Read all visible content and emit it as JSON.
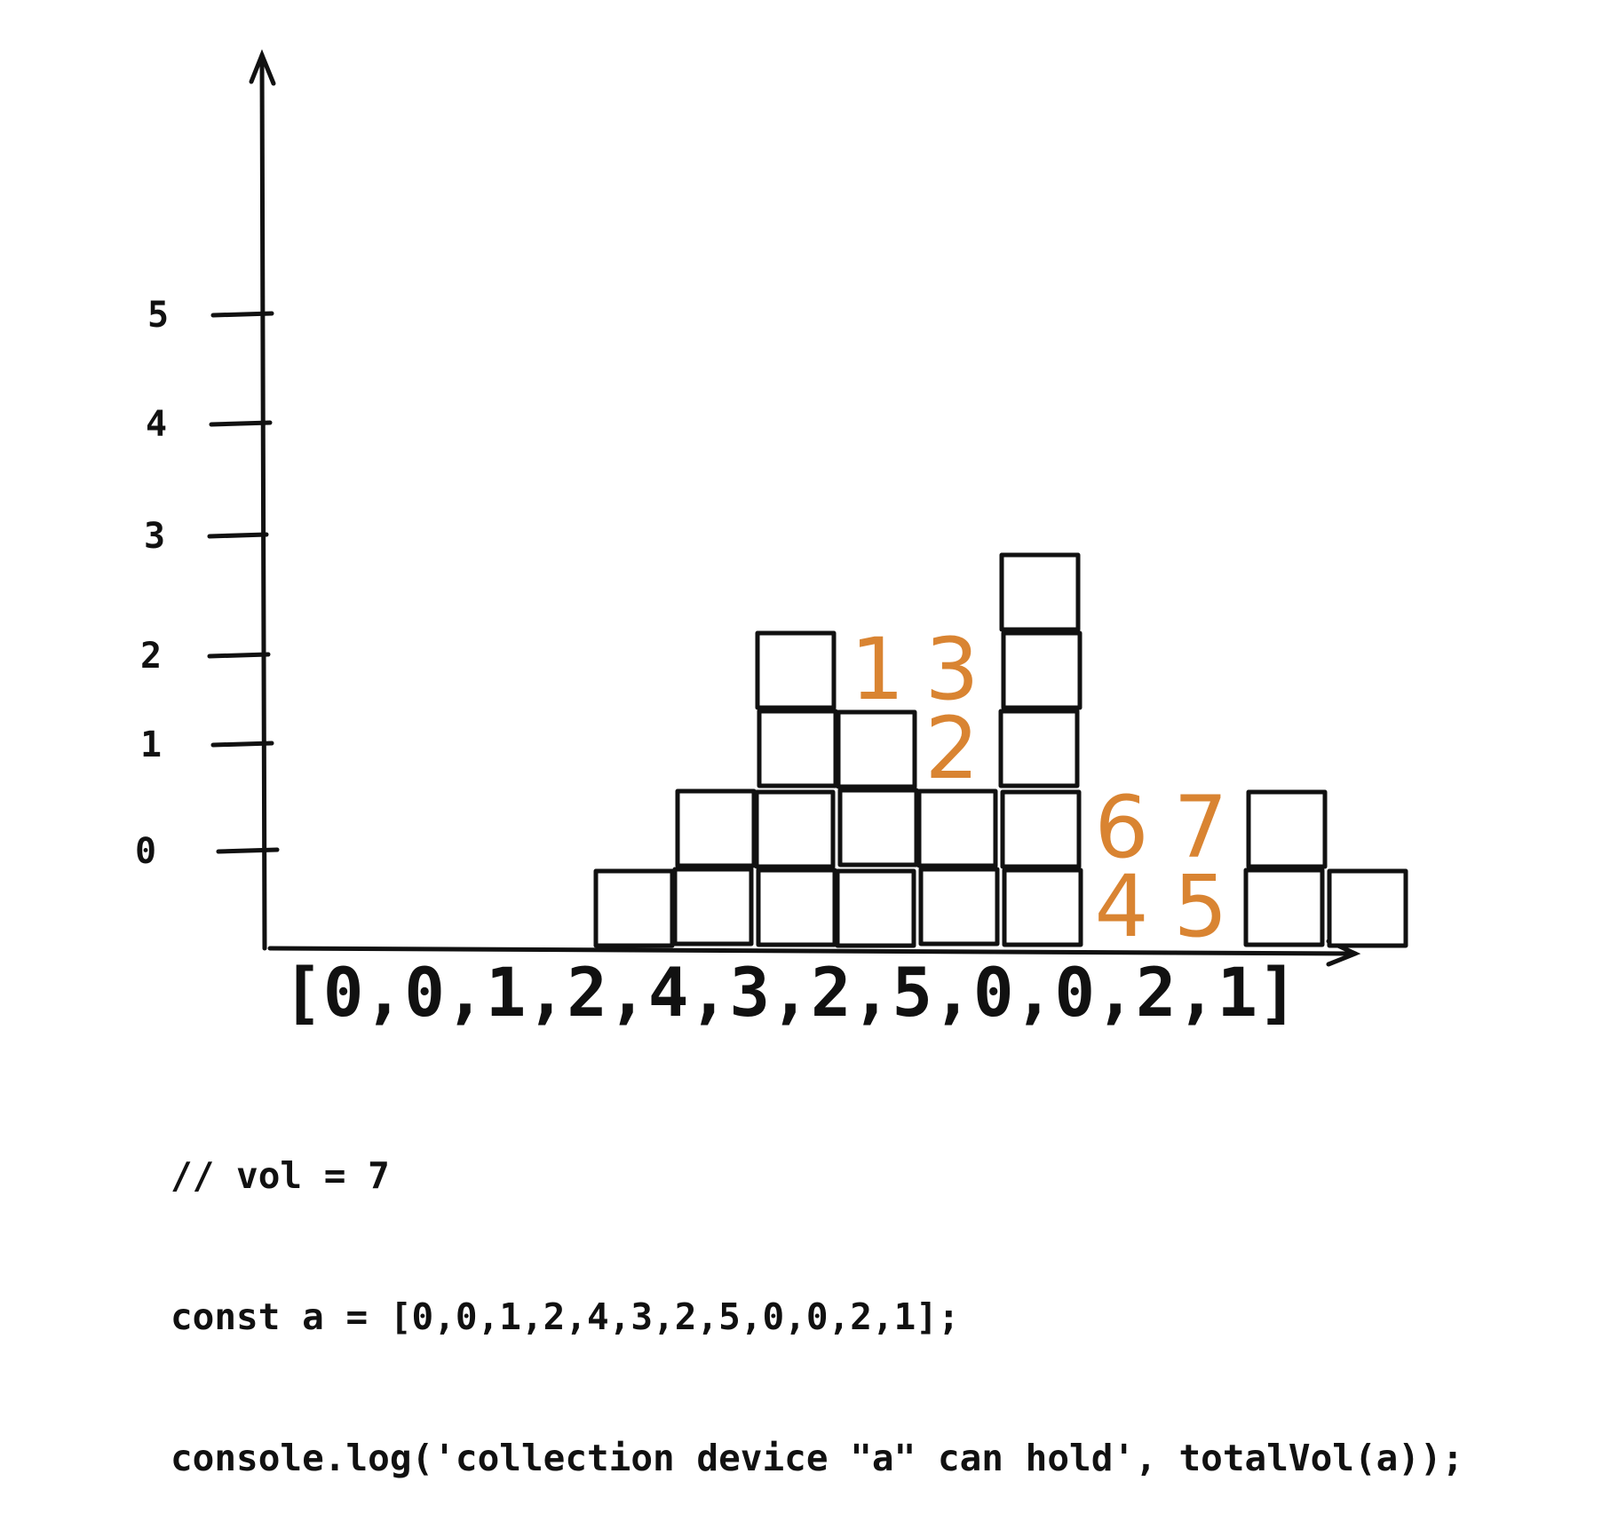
{
  "chart_data": {
    "type": "bar",
    "y_ticks": [
      "0",
      "1",
      "2",
      "3",
      "4",
      "5"
    ],
    "heights": [
      0,
      0,
      1,
      2,
      4,
      3,
      2,
      5,
      0,
      0,
      2,
      1
    ],
    "array_label": "[0,0,1,2,4,3,2,5,0,0,2,1]",
    "water_labels": [
      {
        "text": "1",
        "column": 5,
        "level": 4
      },
      {
        "text": "3",
        "column": 6,
        "level": 4
      },
      {
        "text": "2",
        "column": 6,
        "level": 3
      },
      {
        "text": "6",
        "column": 8,
        "level": 2
      },
      {
        "text": "7",
        "column": 9,
        "level": 2
      },
      {
        "text": "4",
        "column": 8,
        "level": 1
      },
      {
        "text": "5",
        "column": 9,
        "level": 1
      }
    ],
    "colors": {
      "ink": "#111111",
      "water": "#d98432"
    }
  },
  "code": {
    "lines": [
      "// vol = 7",
      "const a = [0,0,1,2,4,3,2,5,0,0,2,1];",
      "console.log('collection device \"a\" can hold', totalVol(a));"
    ]
  }
}
